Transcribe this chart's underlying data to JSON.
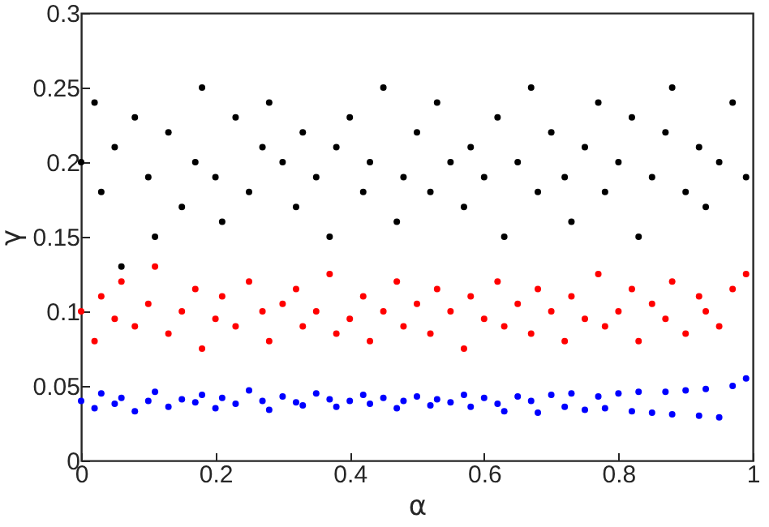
{
  "chart_data": {
    "type": "scatter",
    "xlabel": "α",
    "ylabel": "γ",
    "xlim": [
      0,
      1
    ],
    "ylim": [
      0,
      0.3
    ],
    "xticks": [
      0,
      0.2,
      0.4,
      0.6,
      0.8,
      1
    ],
    "yticks": [
      0,
      0.05,
      0.1,
      0.15,
      0.2,
      0.25,
      0.3
    ],
    "grid": false,
    "marker": "circle",
    "x": [
      0,
      0.02,
      0.03,
      0.05,
      0.06,
      0.08,
      0.1,
      0.11,
      0.13,
      0.15,
      0.17,
      0.18,
      0.2,
      0.21,
      0.23,
      0.25,
      0.27,
      0.28,
      0.3,
      0.32,
      0.33,
      0.35,
      0.37,
      0.38,
      0.4,
      0.42,
      0.43,
      0.45,
      0.47,
      0.48,
      0.5,
      0.52,
      0.53,
      0.55,
      0.57,
      0.58,
      0.6,
      0.62,
      0.63,
      0.65,
      0.67,
      0.68,
      0.7,
      0.72,
      0.73,
      0.75,
      0.77,
      0.78,
      0.8,
      0.82,
      0.83,
      0.85,
      0.87,
      0.88,
      0.9,
      0.92,
      0.93,
      0.95,
      0.97,
      0.99
    ],
    "series": [
      {
        "color": "#000000",
        "values": [
          0.2,
          0.24,
          0.18,
          0.21,
          0.13,
          0.23,
          0.19,
          0.15,
          0.22,
          0.17,
          0.2,
          0.25,
          0.19,
          0.16,
          0.23,
          0.18,
          0.21,
          0.24,
          0.2,
          0.17,
          0.22,
          0.19,
          0.15,
          0.21,
          0.23,
          0.18,
          0.2,
          0.25,
          0.16,
          0.19,
          0.22,
          0.18,
          0.24,
          0.2,
          0.17,
          0.21,
          0.19,
          0.23,
          0.15,
          0.2,
          0.25,
          0.18,
          0.22,
          0.19,
          0.16,
          0.21,
          0.24,
          0.18,
          0.2,
          0.23,
          0.15,
          0.19,
          0.22,
          0.25,
          0.18,
          0.21,
          0.17,
          0.2,
          0.24,
          0.19
        ]
      },
      {
        "color": "#ff0000",
        "values": [
          0.1,
          0.08,
          0.11,
          0.095,
          0.12,
          0.09,
          0.105,
          0.13,
          0.085,
          0.1,
          0.115,
          0.075,
          0.095,
          0.11,
          0.09,
          0.12,
          0.1,
          0.08,
          0.105,
          0.115,
          0.09,
          0.1,
          0.125,
          0.085,
          0.095,
          0.11,
          0.08,
          0.1,
          0.12,
          0.09,
          0.105,
          0.085,
          0.115,
          0.1,
          0.075,
          0.11,
          0.095,
          0.12,
          0.09,
          0.105,
          0.085,
          0.115,
          0.1,
          0.08,
          0.11,
          0.095,
          0.125,
          0.09,
          0.1,
          0.115,
          0.08,
          0.105,
          0.095,
          0.12,
          0.085,
          0.11,
          0.1,
          0.09,
          0.115,
          0.125
        ]
      },
      {
        "color": "#0000ff",
        "values": [
          0.04,
          0.035,
          0.045,
          0.038,
          0.042,
          0.033,
          0.04,
          0.046,
          0.036,
          0.041,
          0.039,
          0.044,
          0.035,
          0.042,
          0.038,
          0.047,
          0.04,
          0.034,
          0.043,
          0.039,
          0.037,
          0.045,
          0.041,
          0.036,
          0.04,
          0.044,
          0.038,
          0.042,
          0.035,
          0.04,
          0.043,
          0.037,
          0.041,
          0.039,
          0.044,
          0.036,
          0.042,
          0.038,
          0.033,
          0.043,
          0.04,
          0.032,
          0.044,
          0.036,
          0.045,
          0.034,
          0.043,
          0.035,
          0.045,
          0.033,
          0.046,
          0.032,
          0.046,
          0.031,
          0.047,
          0.03,
          0.048,
          0.029,
          0.05,
          0.055
        ]
      }
    ]
  }
}
